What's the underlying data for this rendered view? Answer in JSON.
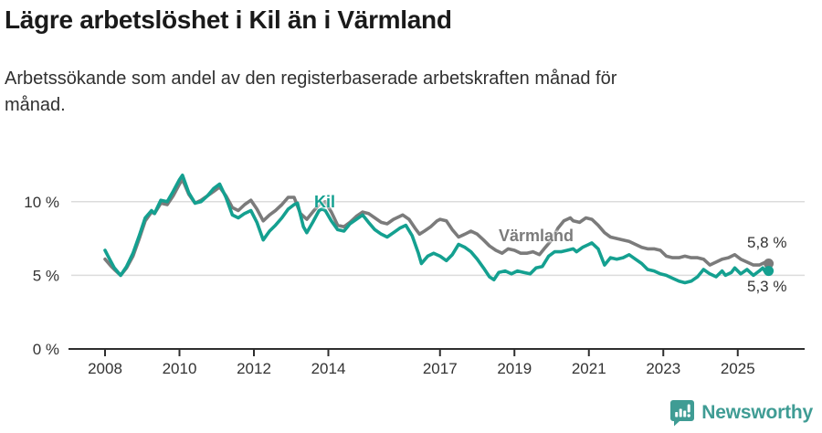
{
  "header": {
    "title": "Lägre arbetslöshet i Kil än i Värmland",
    "subtitle_line1": "Arbetssökande som andel av den registerbaserade arbetskraften månad för",
    "subtitle_line2": "månad."
  },
  "chart_data": {
    "type": "line",
    "unit": "%",
    "grid": "horizontal",
    "x_range": [
      2008,
      2025.83
    ],
    "ylim": [
      0,
      12.5
    ],
    "x_ticks": [
      2008,
      2010,
      2012,
      2014,
      2017,
      2019,
      2021,
      2023,
      2025
    ],
    "y_ticks": [
      {
        "value": 0,
        "label": "0 %"
      },
      {
        "value": 5,
        "label": "5 %"
      },
      {
        "value": 10,
        "label": "10 %"
      }
    ],
    "series": [
      {
        "name": "Värmland",
        "color": "#7b7b7b",
        "end_value": 5.8,
        "end_label": "5,8 %",
        "points": [
          [
            2008.0,
            6.1
          ],
          [
            2008.17,
            5.6
          ],
          [
            2008.25,
            5.4
          ],
          [
            2008.42,
            5.0
          ],
          [
            2008.58,
            5.5
          ],
          [
            2008.75,
            6.3
          ],
          [
            2008.92,
            7.5
          ],
          [
            2009.08,
            8.7
          ],
          [
            2009.25,
            9.3
          ],
          [
            2009.33,
            9.2
          ],
          [
            2009.5,
            9.9
          ],
          [
            2009.67,
            9.8
          ],
          [
            2009.83,
            10.4
          ],
          [
            2010.0,
            11.2
          ],
          [
            2010.08,
            11.5
          ],
          [
            2010.25,
            10.5
          ],
          [
            2010.42,
            9.9
          ],
          [
            2010.58,
            10.1
          ],
          [
            2010.75,
            10.4
          ],
          [
            2010.92,
            10.7
          ],
          [
            2011.08,
            11.0
          ],
          [
            2011.25,
            10.4
          ],
          [
            2011.42,
            9.6
          ],
          [
            2011.58,
            9.4
          ],
          [
            2011.75,
            9.8
          ],
          [
            2011.92,
            10.1
          ],
          [
            2012.08,
            9.5
          ],
          [
            2012.25,
            8.7
          ],
          [
            2012.42,
            9.1
          ],
          [
            2012.58,
            9.4
          ],
          [
            2012.75,
            9.8
          ],
          [
            2012.92,
            10.3
          ],
          [
            2013.08,
            10.3
          ],
          [
            2013.25,
            9.2
          ],
          [
            2013.42,
            8.8
          ],
          [
            2013.58,
            9.3
          ],
          [
            2013.75,
            9.8
          ],
          [
            2013.92,
            10.0
          ],
          [
            2014.08,
            9.3
          ],
          [
            2014.25,
            8.4
          ],
          [
            2014.42,
            8.3
          ],
          [
            2014.58,
            8.6
          ],
          [
            2014.75,
            9.0
          ],
          [
            2014.92,
            9.3
          ],
          [
            2015.08,
            9.2
          ],
          [
            2015.25,
            8.9
          ],
          [
            2015.42,
            8.6
          ],
          [
            2015.58,
            8.5
          ],
          [
            2015.75,
            8.8
          ],
          [
            2015.92,
            9.0
          ],
          [
            2016.0,
            9.1
          ],
          [
            2016.17,
            8.8
          ],
          [
            2016.33,
            8.2
          ],
          [
            2016.45,
            7.8
          ],
          [
            2016.58,
            8.0
          ],
          [
            2016.75,
            8.3
          ],
          [
            2016.92,
            8.7
          ],
          [
            2017.0,
            8.8
          ],
          [
            2017.17,
            8.7
          ],
          [
            2017.33,
            8.1
          ],
          [
            2017.5,
            7.6
          ],
          [
            2017.67,
            7.8
          ],
          [
            2017.83,
            8.0
          ],
          [
            2018.0,
            7.8
          ],
          [
            2018.17,
            7.4
          ],
          [
            2018.33,
            7.0
          ],
          [
            2018.5,
            6.7
          ],
          [
            2018.67,
            6.5
          ],
          [
            2018.83,
            6.8
          ],
          [
            2019.0,
            6.7
          ],
          [
            2019.17,
            6.5
          ],
          [
            2019.33,
            6.5
          ],
          [
            2019.5,
            6.6
          ],
          [
            2019.67,
            6.4
          ],
          [
            2019.83,
            6.9
          ],
          [
            2020.0,
            7.4
          ],
          [
            2020.17,
            8.2
          ],
          [
            2020.33,
            8.7
          ],
          [
            2020.5,
            8.9
          ],
          [
            2020.58,
            8.7
          ],
          [
            2020.75,
            8.6
          ],
          [
            2020.92,
            8.9
          ],
          [
            2021.08,
            8.8
          ],
          [
            2021.25,
            8.4
          ],
          [
            2021.42,
            7.9
          ],
          [
            2021.58,
            7.6
          ],
          [
            2021.75,
            7.5
          ],
          [
            2021.92,
            7.4
          ],
          [
            2022.08,
            7.3
          ],
          [
            2022.25,
            7.1
          ],
          [
            2022.42,
            6.9
          ],
          [
            2022.58,
            6.8
          ],
          [
            2022.75,
            6.8
          ],
          [
            2022.92,
            6.7
          ],
          [
            2023.08,
            6.3
          ],
          [
            2023.25,
            6.2
          ],
          [
            2023.42,
            6.2
          ],
          [
            2023.58,
            6.3
          ],
          [
            2023.75,
            6.2
          ],
          [
            2023.92,
            6.2
          ],
          [
            2024.08,
            6.1
          ],
          [
            2024.25,
            5.7
          ],
          [
            2024.42,
            5.9
          ],
          [
            2024.58,
            6.1
          ],
          [
            2024.75,
            6.2
          ],
          [
            2024.92,
            6.4
          ],
          [
            2025.08,
            6.1
          ],
          [
            2025.25,
            5.9
          ],
          [
            2025.42,
            5.7
          ],
          [
            2025.58,
            5.7
          ],
          [
            2025.75,
            5.9
          ],
          [
            2025.83,
            5.8
          ]
        ]
      },
      {
        "name": "Kil",
        "color": "#14a090",
        "end_value": 5.3,
        "end_label": "5,3 %",
        "points": [
          [
            2008.0,
            6.7
          ],
          [
            2008.08,
            6.3
          ],
          [
            2008.25,
            5.5
          ],
          [
            2008.42,
            5.0
          ],
          [
            2008.58,
            5.6
          ],
          [
            2008.75,
            6.5
          ],
          [
            2008.92,
            7.7
          ],
          [
            2009.08,
            8.9
          ],
          [
            2009.25,
            9.4
          ],
          [
            2009.33,
            9.2
          ],
          [
            2009.5,
            10.1
          ],
          [
            2009.67,
            10.0
          ],
          [
            2009.83,
            10.7
          ],
          [
            2010.0,
            11.5
          ],
          [
            2010.08,
            11.8
          ],
          [
            2010.25,
            10.6
          ],
          [
            2010.42,
            9.9
          ],
          [
            2010.58,
            10.0
          ],
          [
            2010.75,
            10.4
          ],
          [
            2010.92,
            10.9
          ],
          [
            2011.08,
            11.2
          ],
          [
            2011.25,
            10.3
          ],
          [
            2011.42,
            9.1
          ],
          [
            2011.58,
            8.9
          ],
          [
            2011.75,
            9.2
          ],
          [
            2011.92,
            9.4
          ],
          [
            2012.08,
            8.6
          ],
          [
            2012.25,
            7.4
          ],
          [
            2012.42,
            8.0
          ],
          [
            2012.58,
            8.4
          ],
          [
            2012.75,
            8.9
          ],
          [
            2012.92,
            9.5
          ],
          [
            2013.08,
            9.8
          ],
          [
            2013.17,
            9.9
          ],
          [
            2013.33,
            8.3
          ],
          [
            2013.42,
            7.9
          ],
          [
            2013.58,
            8.6
          ],
          [
            2013.75,
            9.4
          ],
          [
            2013.83,
            9.5
          ],
          [
            2013.92,
            9.4
          ],
          [
            2014.08,
            8.7
          ],
          [
            2014.25,
            8.1
          ],
          [
            2014.42,
            8.0
          ],
          [
            2014.58,
            8.5
          ],
          [
            2014.75,
            8.8
          ],
          [
            2014.92,
            9.1
          ],
          [
            2015.08,
            8.6
          ],
          [
            2015.25,
            8.1
          ],
          [
            2015.42,
            7.8
          ],
          [
            2015.58,
            7.6
          ],
          [
            2015.75,
            7.9
          ],
          [
            2015.92,
            8.2
          ],
          [
            2016.08,
            8.4
          ],
          [
            2016.25,
            7.7
          ],
          [
            2016.42,
            6.5
          ],
          [
            2016.5,
            5.8
          ],
          [
            2016.67,
            6.3
          ],
          [
            2016.83,
            6.5
          ],
          [
            2017.0,
            6.3
          ],
          [
            2017.17,
            6.0
          ],
          [
            2017.33,
            6.4
          ],
          [
            2017.5,
            7.1
          ],
          [
            2017.67,
            6.9
          ],
          [
            2017.83,
            6.6
          ],
          [
            2018.0,
            6.1
          ],
          [
            2018.17,
            5.5
          ],
          [
            2018.33,
            4.9
          ],
          [
            2018.45,
            4.7
          ],
          [
            2018.58,
            5.2
          ],
          [
            2018.75,
            5.3
          ],
          [
            2018.92,
            5.1
          ],
          [
            2019.08,
            5.3
          ],
          [
            2019.25,
            5.2
          ],
          [
            2019.42,
            5.1
          ],
          [
            2019.58,
            5.5
          ],
          [
            2019.75,
            5.6
          ],
          [
            2019.92,
            6.3
          ],
          [
            2020.08,
            6.6
          ],
          [
            2020.25,
            6.6
          ],
          [
            2020.42,
            6.7
          ],
          [
            2020.58,
            6.8
          ],
          [
            2020.67,
            6.6
          ],
          [
            2020.83,
            6.9
          ],
          [
            2021.0,
            7.1
          ],
          [
            2021.08,
            7.2
          ],
          [
            2021.25,
            6.8
          ],
          [
            2021.42,
            5.7
          ],
          [
            2021.58,
            6.2
          ],
          [
            2021.75,
            6.1
          ],
          [
            2021.92,
            6.2
          ],
          [
            2022.08,
            6.4
          ],
          [
            2022.25,
            6.1
          ],
          [
            2022.42,
            5.8
          ],
          [
            2022.58,
            5.4
          ],
          [
            2022.75,
            5.3
          ],
          [
            2022.92,
            5.1
          ],
          [
            2023.08,
            5.0
          ],
          [
            2023.25,
            4.8
          ],
          [
            2023.42,
            4.6
          ],
          [
            2023.58,
            4.5
          ],
          [
            2023.75,
            4.6
          ],
          [
            2023.92,
            4.9
          ],
          [
            2024.08,
            5.4
          ],
          [
            2024.25,
            5.1
          ],
          [
            2024.42,
            4.9
          ],
          [
            2024.58,
            5.3
          ],
          [
            2024.67,
            5.0
          ],
          [
            2024.83,
            5.2
          ],
          [
            2024.92,
            5.5
          ],
          [
            2025.08,
            5.1
          ],
          [
            2025.25,
            5.4
          ],
          [
            2025.42,
            5.0
          ],
          [
            2025.58,
            5.3
          ],
          [
            2025.67,
            5.5
          ],
          [
            2025.75,
            5.2
          ],
          [
            2025.83,
            5.3
          ]
        ]
      }
    ],
    "colors": {
      "grid": "#dcdcdc",
      "axis": "#2e2e2e",
      "tick_text": "#333333"
    }
  },
  "footer": {
    "brand": "Newsworthy",
    "brand_color": "#3f9c94"
  }
}
